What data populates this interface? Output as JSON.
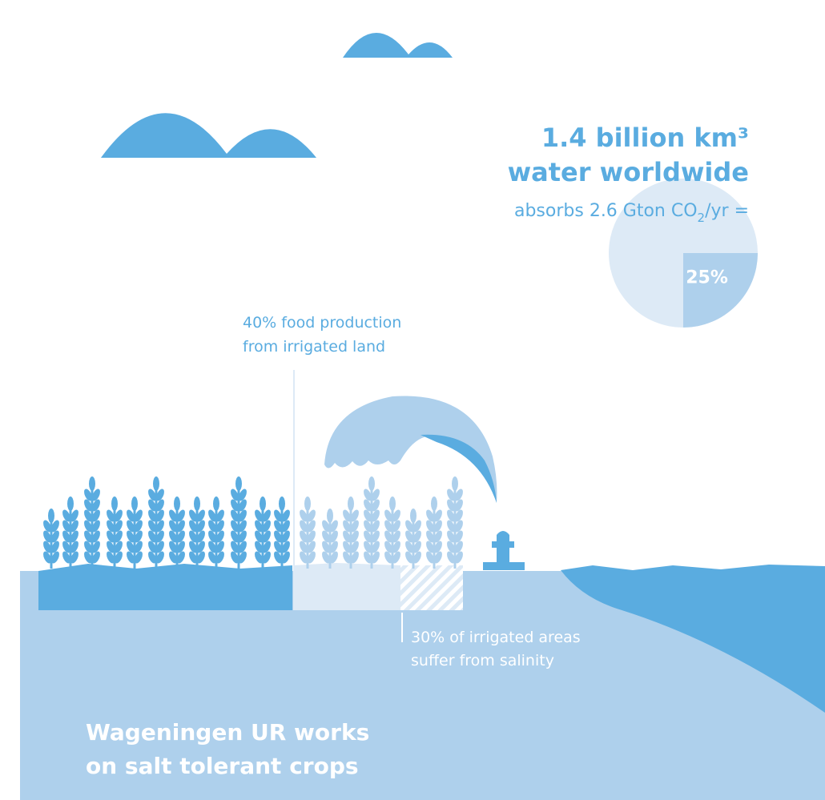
{
  "headline": {
    "line1": "1.4 billion km³",
    "line2": "water worldwide"
  },
  "co2_line": {
    "before": "absorbs 2.6 Gton CO",
    "subscript": "2",
    "after": "/yr ="
  },
  "pie": {
    "value": 25,
    "label": "25%"
  },
  "food_note": {
    "line1": "40% food production",
    "line2": "from irrigated land"
  },
  "salinity_note": {
    "line1": "30% of irrigated areas",
    "line2": "suffer from salinity"
  },
  "footer": {
    "line1": "Wageningen UR works",
    "line2": "on salt tolerant crops"
  }
}
